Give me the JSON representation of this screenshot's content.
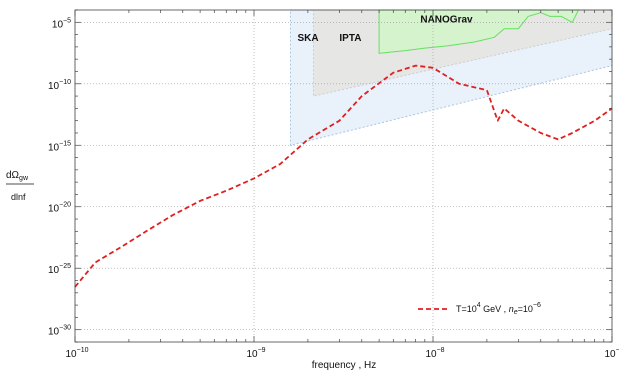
{
  "chart_data": {
    "type": "line",
    "title": "",
    "xlabel": "frequency , Hz",
    "ylabel": {
      "numerator": "dΩgw",
      "denominator": "dlnf"
    },
    "x_scale": "log",
    "y_scale": "log",
    "xlim": [
      1e-10,
      1e-07
    ],
    "ylim": [
      1e-31,
      0.0001
    ],
    "grid": true,
    "x_ticks": [
      {
        "value": 1e-10,
        "base": "10",
        "exp": "−10"
      },
      {
        "value": 1e-09,
        "base": "10",
        "exp": "−9"
      },
      {
        "value": 1e-08,
        "base": "10",
        "exp": "−8"
      },
      {
        "value": 1e-07,
        "base": "10",
        "exp": "−7"
      }
    ],
    "y_ticks": [
      {
        "value": 1e-05,
        "base": "10",
        "exp": "−5"
      },
      {
        "value": 1e-10,
        "base": "10",
        "exp": "−10"
      },
      {
        "value": 1e-15,
        "base": "10",
        "exp": "−15"
      },
      {
        "value": 1e-20,
        "base": "10",
        "exp": "−20"
      },
      {
        "value": 1e-25,
        "base": "10",
        "exp": "−25"
      },
      {
        "value": 1e-30,
        "base": "10",
        "exp": "−30"
      }
    ],
    "sensitivity_regions": [
      {
        "name": "SKA",
        "fill": "#e9f1fb",
        "stroke": "#a9c6e3",
        "label_at": [
          1.75e-09,
          3e-07
        ],
        "polygon": [
          [
            1.6e-09,
            0.0001
          ],
          [
            1e-07,
            0.0001
          ],
          [
            1e-07,
            3e-09
          ],
          [
            1.6e-09,
            1e-15
          ]
        ]
      },
      {
        "name": "IPTA",
        "fill": "#e6e6e4",
        "stroke": "#cccccc",
        "label_at": [
          3e-09,
          3e-07
        ],
        "polygon": [
          [
            2.15e-09,
            0.0001
          ],
          [
            1e-07,
            0.0001
          ],
          [
            1e-07,
            3e-06
          ],
          [
            2.15e-09,
            1e-11
          ]
        ]
      },
      {
        "name": "NANOGrav",
        "fill": "#d5f3cd",
        "stroke": "#66e060",
        "label_at": [
          8.5e-09,
          1e-05
        ],
        "polygon": [
          [
            5e-09,
            0.0001
          ],
          [
            6.5e-08,
            0.0001
          ],
          [
            6.5e-08,
            0.0001
          ],
          [
            6e-08,
            1e-05
          ],
          [
            5.2e-08,
            3e-05
          ],
          [
            4.5e-08,
            3e-05
          ],
          [
            4e-08,
            6e-05
          ],
          [
            3.4e-08,
            3e-05
          ],
          [
            3e-08,
            3e-06
          ],
          [
            2.5e-08,
            3e-06
          ],
          [
            2.2e-08,
            6e-07
          ],
          [
            1.7e-08,
            2.5e-07
          ],
          [
            1.2e-08,
            1.2e-07
          ],
          [
            9e-09,
            8e-08
          ],
          [
            7e-09,
            5e-08
          ],
          [
            5e-09,
            3e-08
          ]
        ]
      }
    ],
    "series": [
      {
        "name": "T=10⁴ GeV , nₑ=10⁻⁶",
        "color": "#e02020",
        "style": "dashed",
        "points": [
          [
            1e-10,
            3e-27
          ],
          [
            1.3e-10,
            3e-25
          ],
          [
            1.8e-10,
            5e-24
          ],
          [
            2.5e-10,
            1e-22
          ],
          [
            3.5e-10,
            2e-21
          ],
          [
            5e-10,
            3e-20
          ],
          [
            7e-10,
            2e-19
          ],
          [
            1e-09,
            2e-18
          ],
          [
            1.4e-09,
            3e-17
          ],
          [
            2e-09,
            3e-15
          ],
          [
            3e-09,
            1e-13
          ],
          [
            4e-09,
            1e-11
          ],
          [
            6e-09,
            8e-10
          ],
          [
            8e-09,
            3e-09
          ],
          [
            1e-08,
            2e-09
          ],
          [
            1.4e-08,
            1e-10
          ],
          [
            2e-08,
            3e-11
          ],
          [
            2.3e-08,
            1e-13
          ],
          [
            2.5e-08,
            1e-12
          ],
          [
            3e-08,
            1e-13
          ],
          [
            4e-08,
            1e-14
          ],
          [
            5e-08,
            3e-15
          ],
          [
            6e-08,
            1e-14
          ],
          [
            8e-08,
            1e-13
          ],
          [
            1e-07,
            1e-12
          ]
        ]
      }
    ],
    "legend": {
      "position": "bottom-right",
      "label_prefix": "T=10",
      "label_t_exp": "4",
      "label_mid": " GeV , ",
      "label_ne": "n",
      "label_ne_sub": "e",
      "label_ne_eq": "=10",
      "label_ne_exp": "−6"
    }
  }
}
